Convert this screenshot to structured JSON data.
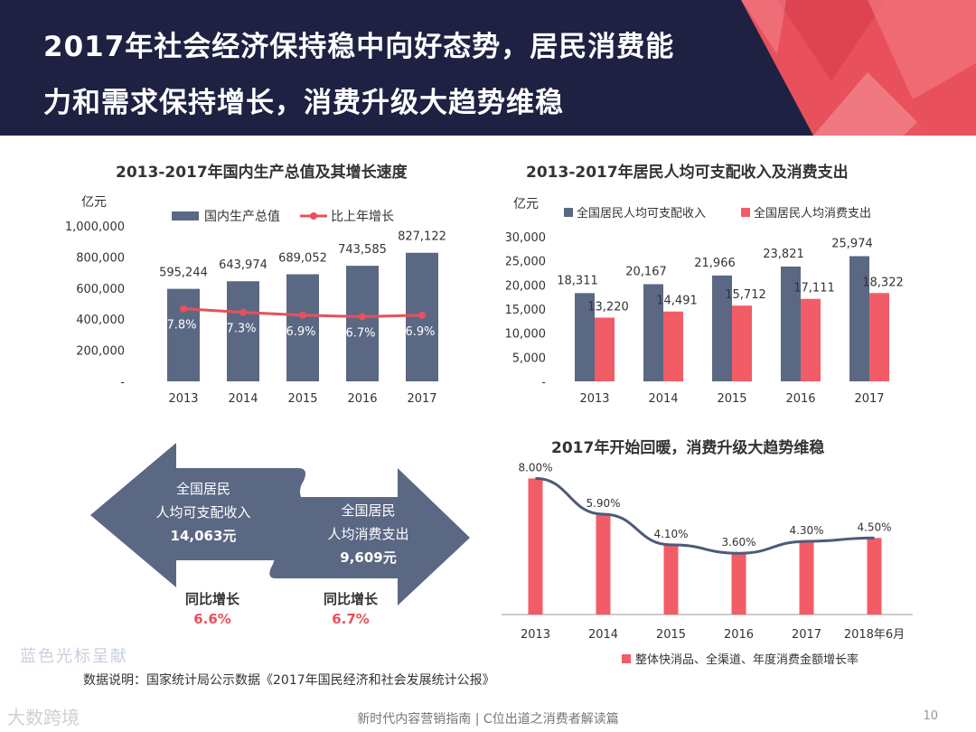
{
  "header": {
    "title_line1": "2017年社会经济保持稳中向好态势，居民消费能",
    "title_line2": "力和需求保持增长，消费升级大趋势维稳",
    "bg_color": "#1e2142",
    "accent_color": "#e8505b"
  },
  "chart_data": [
    {
      "type": "bar",
      "title": "2013-2017年国内生产总值及其增长速度",
      "ylabel": "亿元",
      "categories": [
        "2013",
        "2014",
        "2015",
        "2016",
        "2017"
      ],
      "ylim": [
        0,
        1000000
      ],
      "yticks": [
        "-",
        "200,000",
        "400,000",
        "600,000",
        "800,000",
        "1,000,000"
      ],
      "legend": "top",
      "series": [
        {
          "name": "国内生产总值",
          "kind": "bar",
          "color": "#5b6884",
          "values": [
            595244,
            643974,
            689052,
            743585,
            827122
          ],
          "labels": [
            "595,244",
            "643,974",
            "689,052",
            "743,585",
            "827,122"
          ]
        },
        {
          "name": "比上年增长",
          "kind": "line",
          "color": "#e8505b",
          "values": [
            7.8,
            7.3,
            6.9,
            6.7,
            6.9
          ],
          "labels": [
            "7.8%",
            "7.3%",
            "6.9%",
            "6.7%",
            "6.9%"
          ]
        }
      ]
    },
    {
      "type": "bar",
      "title": "2013-2017年居民人均可支配收入及消费支出",
      "ylabel": "亿元",
      "categories": [
        "2013",
        "2014",
        "2015",
        "2016",
        "2017"
      ],
      "ylim": [
        0,
        30000
      ],
      "yticks": [
        "-",
        "5,000",
        "10,000",
        "15,000",
        "20,000",
        "25,000",
        "30,000"
      ],
      "legend": "top",
      "series": [
        {
          "name": "全国居民人均可支配收入",
          "color": "#5b6884",
          "values": [
            18311,
            20167,
            21966,
            23821,
            25974
          ],
          "labels": [
            "18,311",
            "20,167",
            "21,966",
            "23,821",
            "25,974"
          ]
        },
        {
          "name": "全国居民人均消费支出",
          "color": "#f25c66",
          "values": [
            13220,
            14491,
            15712,
            17111,
            18322
          ],
          "labels": [
            "13,220",
            "14,491",
            "15,712",
            "17,111",
            "18,322"
          ]
        }
      ]
    },
    {
      "type": "bar",
      "title": "2017年开始回暖，消费升级大趋势维稳",
      "categories": [
        "2013",
        "2014",
        "2015",
        "2016",
        "2017",
        "2018年6月"
      ],
      "ylim": [
        0,
        8.5
      ],
      "legend": "bottom",
      "series": [
        {
          "name": "整体快消品、全渠道、年度消费金额增长率",
          "color": "#f25c66",
          "trend_color": "#4e5a78",
          "values": [
            8.0,
            5.9,
            4.1,
            3.6,
            4.3,
            4.5
          ],
          "labels": [
            "8.00%",
            "5.90%",
            "4.10%",
            "3.60%",
            "4.30%",
            "4.50%"
          ]
        }
      ]
    }
  ],
  "income_panel": {
    "left_title_1": "全国居民",
    "left_title_2": "人均可支配收入",
    "left_value": "14,063元",
    "right_title_1": "全国居民",
    "right_title_2": "人均消费支出",
    "right_value": "9,609元",
    "left_growth_label": "同比增长",
    "left_growth": "6.6%",
    "right_growth_label": "同比增长",
    "right_growth": "6.7%",
    "arrow_color": "#5b6884",
    "growth_color": "#e8505b"
  },
  "watermarks": {
    "top": "蓝色光标呈献",
    "bottom": "大数跨境"
  },
  "footnote": "数据说明：国家统计局公示数据《2017年国民经济和社会发展统计公报》",
  "footer": {
    "text": "新时代内容营销指南 | C位出道之消费者解读篇",
    "page": "10"
  }
}
